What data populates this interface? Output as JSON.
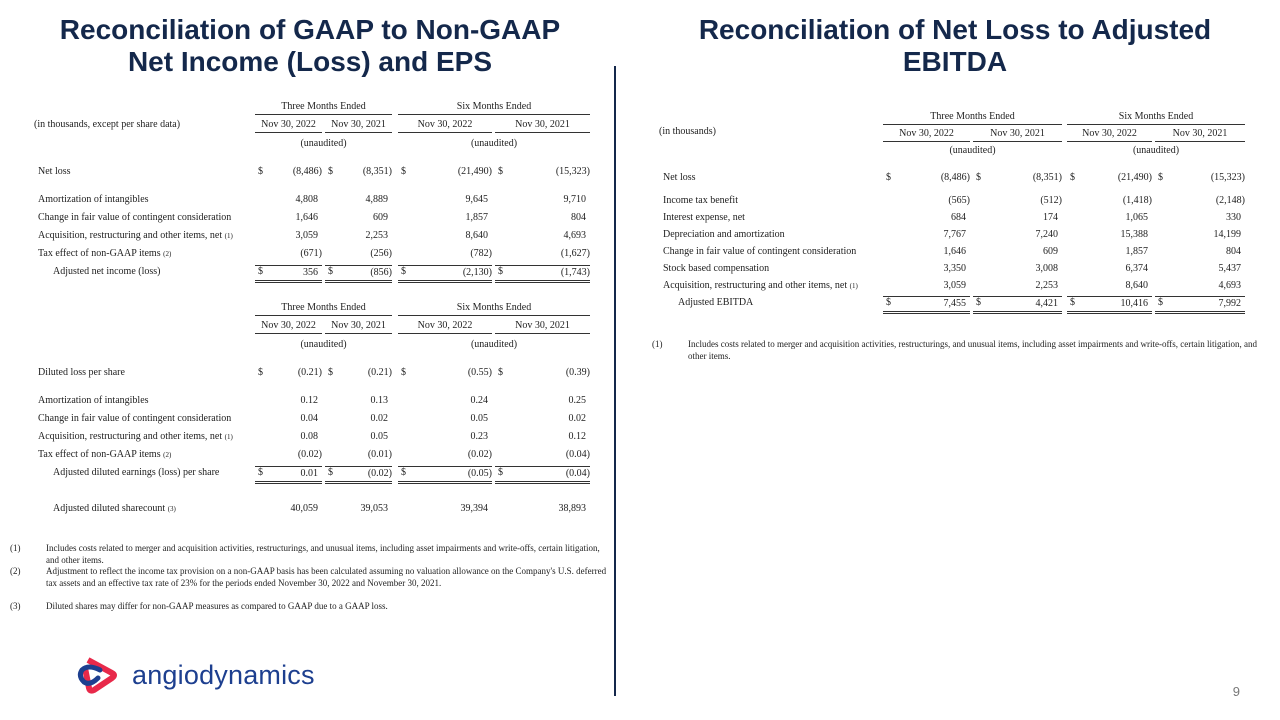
{
  "left": {
    "title_line1": "Reconciliation of GAAP to Non-GAAP",
    "title_line2": "Net Income (Loss) and EPS",
    "table1": {
      "unit_label": "(in thousands, except per share data)",
      "group_headers": [
        "Three Months Ended",
        "Six Months Ended"
      ],
      "columns": [
        "Nov 30, 2022",
        "Nov 30, 2021",
        "Nov 30, 2022",
        "Nov 30, 2021"
      ],
      "unaudited": [
        "(unaudited)",
        "(unaudited)"
      ],
      "rows": [
        {
          "label": "Net loss",
          "values": [
            "(8,486)",
            "(8,351)",
            "(21,490)",
            "(15,323)"
          ],
          "dollar": true
        },
        {
          "label": "Amortization of intangibles",
          "values": [
            "4,808",
            "4,889",
            "9,645",
            "9,710"
          ]
        },
        {
          "label": "Change in fair value of contingent consideration",
          "values": [
            "1,646",
            "609",
            "1,857",
            "804"
          ]
        },
        {
          "label": "Acquisition, restructuring and other items, net",
          "note": "(1)",
          "values": [
            "3,059",
            "2,253",
            "8,640",
            "4,693"
          ]
        },
        {
          "label": "Tax effect of non-GAAP items",
          "note": "(2)",
          "values": [
            "(671)",
            "(256)",
            "(782)",
            "(1,627)"
          ]
        },
        {
          "label": "Adjusted net income (loss)",
          "indent": true,
          "values": [
            "356",
            "(856)",
            "(2,130)",
            "(1,743)"
          ],
          "dollar": true,
          "total": true
        }
      ]
    },
    "table2": {
      "unit_label": "",
      "group_headers": [
        "Three Months Ended",
        "Six Months Ended"
      ],
      "columns": [
        "Nov 30, 2022",
        "Nov 30, 2021",
        "Nov 30, 2022",
        "Nov 30, 2021"
      ],
      "unaudited": [
        "(unaudited)",
        "(unaudited)"
      ],
      "rows": [
        {
          "label": "Diluted loss per share",
          "values": [
            "(0.21)",
            "(0.21)",
            "(0.55)",
            "(0.39)"
          ],
          "dollar": true
        },
        {
          "label": "Amortization of intangibles",
          "values": [
            "0.12",
            "0.13",
            "0.24",
            "0.25"
          ]
        },
        {
          "label": "Change in fair value of contingent consideration",
          "values": [
            "0.04",
            "0.02",
            "0.05",
            "0.02"
          ]
        },
        {
          "label": "Acquisition, restructuring and other items, net",
          "note": "(1)",
          "values": [
            "0.08",
            "0.05",
            "0.23",
            "0.12"
          ]
        },
        {
          "label": "Tax effect of non-GAAP items",
          "note": "(2)",
          "values": [
            "(0.02)",
            "(0.01)",
            "(0.02)",
            "(0.04)"
          ]
        },
        {
          "label": "Adjusted diluted earnings (loss) per share",
          "indent": true,
          "values": [
            "0.01",
            "(0.02)",
            "(0.05)",
            "(0.04)"
          ],
          "dollar": true,
          "total": true
        },
        {
          "label": "Adjusted diluted sharecount",
          "note": "(3)",
          "indent": true,
          "values": [
            "40,059",
            "39,053",
            "39,394",
            "38,893"
          ],
          "gap": true
        }
      ]
    },
    "footnotes": [
      {
        "num": "(1)",
        "text": "Includes costs related to merger and acquisition activities, restructurings, and unusual items, including asset impairments and write-offs, certain litigation, and other items."
      },
      {
        "num": "(2)",
        "text": "Adjustment to reflect the income tax provision on a non-GAAP basis has been calculated assuming no valuation allowance on the Company's U.S. deferred tax assets and an effective tax rate of 23% for the periods ended November 30, 2022 and November 30, 2021."
      },
      {
        "num": "(3)",
        "text": "Diluted shares may differ for non-GAAP measures as compared to GAAP due to a GAAP loss."
      }
    ]
  },
  "right": {
    "title_line1": "Reconciliation of Net Loss to Adjusted",
    "title_line2": "EBITDA",
    "table": {
      "unit_label": "(in thousands)",
      "group_headers": [
        "Three Months Ended",
        "Six Months Ended"
      ],
      "columns": [
        "Nov 30, 2022",
        "Nov 30, 2021",
        "Nov 30, 2022",
        "Nov 30, 2021"
      ],
      "unaudited": [
        "(unaudited)",
        "(unaudited)"
      ],
      "rows": [
        {
          "label": "Net loss",
          "values": [
            "(8,486)",
            "(8,351)",
            "(21,490)",
            "(15,323)"
          ],
          "dollar": true
        },
        {
          "label": "Income tax benefit",
          "values": [
            "(565)",
            "(512)",
            "(1,418)",
            "(2,148)"
          ]
        },
        {
          "label": "Interest expense, net",
          "values": [
            "684",
            "174",
            "1,065",
            "330"
          ]
        },
        {
          "label": "Depreciation and amortization",
          "values": [
            "7,767",
            "7,240",
            "15,388",
            "14,199"
          ]
        },
        {
          "label": "Change in fair value of contingent consideration",
          "values": [
            "1,646",
            "609",
            "1,857",
            "804"
          ]
        },
        {
          "label": "Stock based compensation",
          "values": [
            "3,350",
            "3,008",
            "6,374",
            "5,437"
          ]
        },
        {
          "label": "Acquisition, restructuring and other items, net",
          "note": "(1)",
          "values": [
            "3,059",
            "2,253",
            "8,640",
            "4,693"
          ]
        },
        {
          "label": "Adjusted EBITDA",
          "indent": true,
          "values": [
            "7,455",
            "4,421",
            "10,416",
            "7,992"
          ],
          "dollar": true,
          "total": true
        }
      ]
    },
    "footnotes": [
      {
        "num": "(1)",
        "text": "Includes costs related to merger and acquisition activities, restructurings, and unusual items, including asset impairments and write-offs, certain litigation, and other items."
      }
    ]
  },
  "footer": {
    "logo_text": "angiodynamics",
    "page_number": "9",
    "brand_red": "#e8294a",
    "brand_navy": "#1d3f8f"
  }
}
